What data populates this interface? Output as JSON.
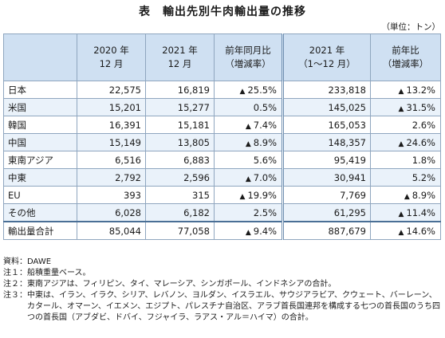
{
  "title": "表　輸出先別牛肉輸出量の推移",
  "unit": "（単位：トン）",
  "headers": {
    "c2020_dec": "2020 年\n12 月",
    "c2021_dec": "2021 年\n12 月",
    "c_yoy": "前年同月比\n（増減率）",
    "c2021_ytd": "2021 年\n（1〜12 月）",
    "c_ytd_yoy": "前年比\n（増減率）"
  },
  "rows": [
    {
      "label": "日本",
      "v2020_12": "22,575",
      "v2021_12": "16,819",
      "yoy_mark": "▲",
      "yoy": "25.5%",
      "ytd": "233,818",
      "ytd_mark": "▲",
      "ytd_yoy": "13.2%"
    },
    {
      "label": "米国",
      "v2020_12": "15,201",
      "v2021_12": "15,277",
      "yoy_mark": "",
      "yoy": "0.5%",
      "ytd": "145,025",
      "ytd_mark": "▲",
      "ytd_yoy": "31.5%"
    },
    {
      "label": "韓国",
      "v2020_12": "16,391",
      "v2021_12": "15,181",
      "yoy_mark": "▲",
      "yoy": "7.4%",
      "ytd": "165,053",
      "ytd_mark": "",
      "ytd_yoy": "2.6%"
    },
    {
      "label": "中国",
      "v2020_12": "15,149",
      "v2021_12": "13,805",
      "yoy_mark": "▲",
      "yoy": "8.9%",
      "ytd": "148,357",
      "ytd_mark": "▲",
      "ytd_yoy": "24.6%"
    },
    {
      "label": "東南アジア",
      "v2020_12": "6,516",
      "v2021_12": "6,883",
      "yoy_mark": "",
      "yoy": "5.6%",
      "ytd": "95,419",
      "ytd_mark": "",
      "ytd_yoy": "1.8%"
    },
    {
      "label": "中東",
      "v2020_12": "2,792",
      "v2021_12": "2,596",
      "yoy_mark": "▲",
      "yoy": "7.0%",
      "ytd": "30,941",
      "ytd_mark": "",
      "ytd_yoy": "5.2%"
    },
    {
      "label": "EU",
      "v2020_12": "393",
      "v2021_12": "315",
      "yoy_mark": "▲",
      "yoy": "19.9%",
      "ytd": "7,769",
      "ytd_mark": "▲",
      "ytd_yoy": "8.9%"
    },
    {
      "label": "その他",
      "v2020_12": "6,028",
      "v2021_12": "6,182",
      "yoy_mark": "",
      "yoy": "2.5%",
      "ytd": "61,295",
      "ytd_mark": "▲",
      "ytd_yoy": "11.4%"
    }
  ],
  "total": {
    "label": "輸出量合計",
    "v2020_12": "85,044",
    "v2021_12": "77,058",
    "yoy_mark": "▲",
    "yoy": "9.4%",
    "ytd": "887,679",
    "ytd_mark": "▲",
    "ytd_yoy": "14.6%"
  },
  "notes": [
    {
      "tag": "資料：",
      "text": "DAWE"
    },
    {
      "tag": "注１：",
      "text": "船積重量ベース。"
    },
    {
      "tag": "注２：",
      "text": "東南アジアは、フィリピン、タイ、マレーシア、シンガポール、インドネシアの合計。"
    },
    {
      "tag": "注３：",
      "text": "中東は、イラン、イラク、シリア、レバノン、ヨルダン、イスラエル、サウジアラビア、クウェート、バーレーン、カタール、オマーン、イエメン、エジプト、パレスチナ自治区、アラブ首長国連邦を構成する七つの首長国のうち四つの首長国（アブダビ、ドバイ、フジャイラ、ラアス・アル＝ハイマ）の合計。"
    }
  ]
}
